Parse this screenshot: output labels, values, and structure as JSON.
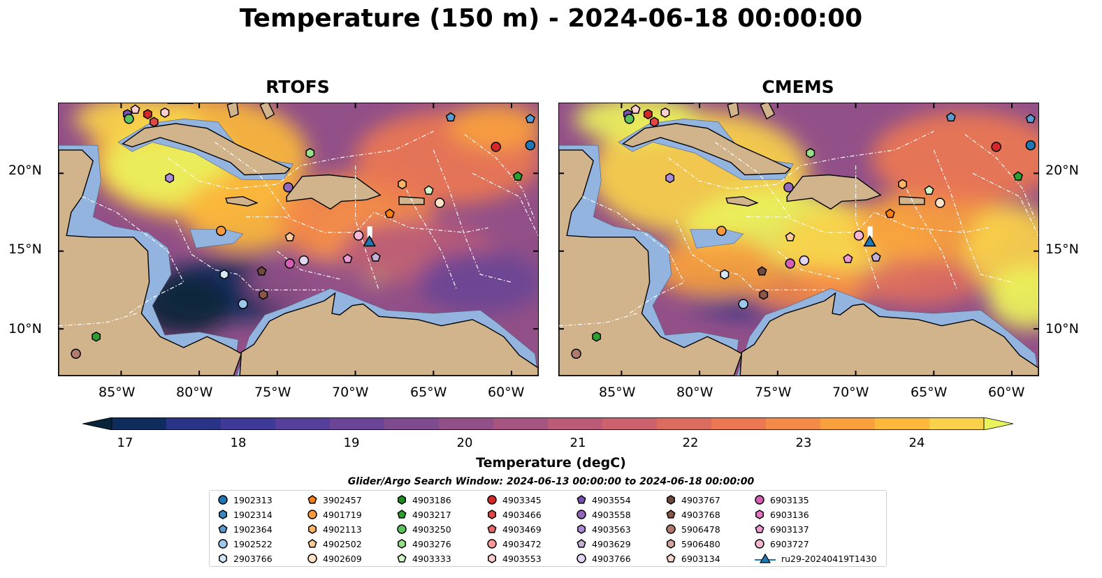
{
  "title": "Temperature (150 m) - 2024-06-18 00:00:00",
  "panels": [
    {
      "title": "RTOFS"
    },
    {
      "title": "CMEMS"
    }
  ],
  "lon_labels": [
    "85°W",
    "80°W",
    "75°W",
    "70°W",
    "65°W",
    "60°W"
  ],
  "lat_labels": [
    "20°N",
    "15°N",
    "10°N"
  ],
  "colorbar": {
    "label": "Temperature (degC)",
    "ticks": [
      "17",
      "18",
      "19",
      "20",
      "21",
      "22",
      "23",
      "24"
    ],
    "vmin": 16.5,
    "vmax": 24.5,
    "colors": [
      "#08243a",
      "#0f2d5c",
      "#2a3487",
      "#3f3a98",
      "#553f9a",
      "#6a4595",
      "#7e4b8f",
      "#925088",
      "#a65581",
      "#ba5b78",
      "#cb626d",
      "#dc6b60",
      "#eb7852",
      "#f48a47",
      "#f9a03e",
      "#fbb83b",
      "#f9d14a",
      "#eaf25c"
    ]
  },
  "search_window": "Glider/Argo Search Window: 2024-06-13 00:00:00 to 2024-06-18 00:00:00",
  "legend": [
    {
      "label": "1902313",
      "marker": "circle",
      "color": "#1f77b4"
    },
    {
      "label": "1902314",
      "marker": "hexagon",
      "color": "#3a86be"
    },
    {
      "label": "1902364",
      "marker": "pentagon",
      "color": "#5b9bd0"
    },
    {
      "label": "1902522",
      "marker": "circle",
      "color": "#9cc8ec"
    },
    {
      "label": "2903766",
      "marker": "hexagon",
      "color": "#d4e8f8"
    },
    {
      "label": "3902457",
      "marker": "pentagon",
      "color": "#ff7f0e"
    },
    {
      "label": "4901719",
      "marker": "circle",
      "color": "#ff9a3c"
    },
    {
      "label": "4902113",
      "marker": "hexagon",
      "color": "#ffb466"
    },
    {
      "label": "4902502",
      "marker": "pentagon",
      "color": "#ffcc99"
    },
    {
      "label": "4902609",
      "marker": "circle",
      "color": "#ffe3c7"
    },
    {
      "label": "4903186",
      "marker": "hexagon",
      "color": "#1e8c1e"
    },
    {
      "label": "4903217",
      "marker": "pentagon",
      "color": "#2ca02c"
    },
    {
      "label": "4903250",
      "marker": "circle",
      "color": "#5cc25c"
    },
    {
      "label": "4903276",
      "marker": "hexagon",
      "color": "#98df8a"
    },
    {
      "label": "4903333",
      "marker": "pentagon",
      "color": "#d2f5c8"
    },
    {
      "label": "4903345",
      "marker": "circle",
      "color": "#d62728"
    },
    {
      "label": "4903466",
      "marker": "hexagon",
      "color": "#e04848"
    },
    {
      "label": "4903469",
      "marker": "pentagon",
      "color": "#ea6a6a"
    },
    {
      "label": "4903472",
      "marker": "circle",
      "color": "#ff9896"
    },
    {
      "label": "4903553",
      "marker": "hexagon",
      "color": "#ffd0cf"
    },
    {
      "label": "4903554",
      "marker": "pentagon",
      "color": "#7b4fb4"
    },
    {
      "label": "4903558",
      "marker": "circle",
      "color": "#9467bd"
    },
    {
      "label": "4903563",
      "marker": "hexagon",
      "color": "#ad8bd6"
    },
    {
      "label": "4903629",
      "marker": "pentagon",
      "color": "#c5b0d5"
    },
    {
      "label": "4903766",
      "marker": "circle",
      "color": "#e2d5f0"
    },
    {
      "label": "4903767",
      "marker": "hexagon",
      "color": "#6f4a3e"
    },
    {
      "label": "4903768",
      "marker": "pentagon",
      "color": "#8c564b"
    },
    {
      "label": "5906478",
      "marker": "circle",
      "color": "#b07a70"
    },
    {
      "label": "5906480",
      "marker": "hexagon",
      "color": "#d2a79e"
    },
    {
      "label": "6903134",
      "marker": "pentagon",
      "color": "#f5d6cf"
    },
    {
      "label": "6903135",
      "marker": "circle",
      "color": "#d45fb5"
    },
    {
      "label": "6903136",
      "marker": "hexagon",
      "color": "#e377c2"
    },
    {
      "label": "6903137",
      "marker": "pentagon",
      "color": "#ee99d4"
    },
    {
      "label": "6903727",
      "marker": "circle",
      "color": "#f7b6d2"
    },
    {
      "label": "ru29-20240419T1430",
      "marker": "glider",
      "color": "#1f77b4"
    }
  ],
  "map_extent": {
    "lon": [
      -89,
      -58.3
    ],
    "lat": [
      7,
      24.5
    ]
  },
  "floats": [
    {
      "lon": -84.6,
      "lat": 23.8,
      "marker": "hexagon",
      "color": "#7b4fb4"
    },
    {
      "lon": -84.5,
      "lat": 23.5,
      "marker": "circle",
      "color": "#5cc25c"
    },
    {
      "lon": -84.1,
      "lat": 24.1,
      "marker": "pentagon",
      "color": "#ffd0cf"
    },
    {
      "lon": -83.3,
      "lat": 23.8,
      "marker": "hexagon",
      "color": "#d62728"
    },
    {
      "lon": -82.9,
      "lat": 23.3,
      "marker": "hexagon",
      "color": "#e04848"
    },
    {
      "lon": -82.2,
      "lat": 23.9,
      "marker": "hexagon",
      "color": "#ffd0cf"
    },
    {
      "lon": -81.9,
      "lat": 19.7,
      "marker": "hexagon",
      "color": "#ad8bd6"
    },
    {
      "lon": -78.6,
      "lat": 16.3,
      "marker": "circle",
      "color": "#ff9a3c"
    },
    {
      "lon": -78.4,
      "lat": 13.5,
      "marker": "hexagon",
      "color": "#d4e8f8"
    },
    {
      "lon": -77.2,
      "lat": 11.6,
      "marker": "circle",
      "color": "#9cc8ec"
    },
    {
      "lon": -76.0,
      "lat": 13.7,
      "marker": "pentagon",
      "color": "#6f4a3e"
    },
    {
      "lon": -75.9,
      "lat": 12.2,
      "marker": "hexagon",
      "color": "#8c564b"
    },
    {
      "lon": -74.3,
      "lat": 19.1,
      "marker": "circle",
      "color": "#9467bd"
    },
    {
      "lon": -74.2,
      "lat": 15.9,
      "marker": "pentagon",
      "color": "#ffcc99"
    },
    {
      "lon": -74.2,
      "lat": 14.2,
      "marker": "circle",
      "color": "#d45fb5"
    },
    {
      "lon": -73.3,
      "lat": 14.4,
      "marker": "circle",
      "color": "#e2d5f0"
    },
    {
      "lon": -72.9,
      "lat": 21.3,
      "marker": "hexagon",
      "color": "#98df8a"
    },
    {
      "lon": -70.5,
      "lat": 14.5,
      "marker": "pentagon",
      "color": "#ee99d4"
    },
    {
      "lon": -69.8,
      "lat": 16.0,
      "marker": "circle",
      "color": "#f7b6d2"
    },
    {
      "lon": -68.7,
      "lat": 14.6,
      "marker": "pentagon",
      "color": "#c5b0d5"
    },
    {
      "lon": -67.8,
      "lat": 17.4,
      "marker": "pentagon",
      "color": "#ff7f0e"
    },
    {
      "lon": -67.0,
      "lat": 19.3,
      "marker": "hexagon",
      "color": "#ffb466"
    },
    {
      "lon": -65.3,
      "lat": 18.9,
      "marker": "pentagon",
      "color": "#d2f5c8"
    },
    {
      "lon": -64.6,
      "lat": 18.1,
      "marker": "circle",
      "color": "#ffe3c7"
    },
    {
      "lon": -63.9,
      "lat": 23.6,
      "marker": "pentagon",
      "color": "#5b9bd0"
    },
    {
      "lon": -61.0,
      "lat": 21.7,
      "marker": "circle",
      "color": "#d62728"
    },
    {
      "lon": -59.6,
      "lat": 19.8,
      "marker": "pentagon",
      "color": "#2ca02c"
    },
    {
      "lon": -58.8,
      "lat": 23.5,
      "marker": "pentagon",
      "color": "#5b9bd0"
    },
    {
      "lon": -58.8,
      "lat": 21.8,
      "marker": "circle",
      "color": "#1f77b4"
    },
    {
      "lon": -86.6,
      "lat": 9.5,
      "marker": "hexagon",
      "color": "#2ca02c"
    },
    {
      "lon": -87.9,
      "lat": 8.4,
      "marker": "circle",
      "color": "#b07a70"
    }
  ],
  "glider": {
    "lon": -69.1,
    "lat": 15.6,
    "color": "#1f77b4"
  }
}
